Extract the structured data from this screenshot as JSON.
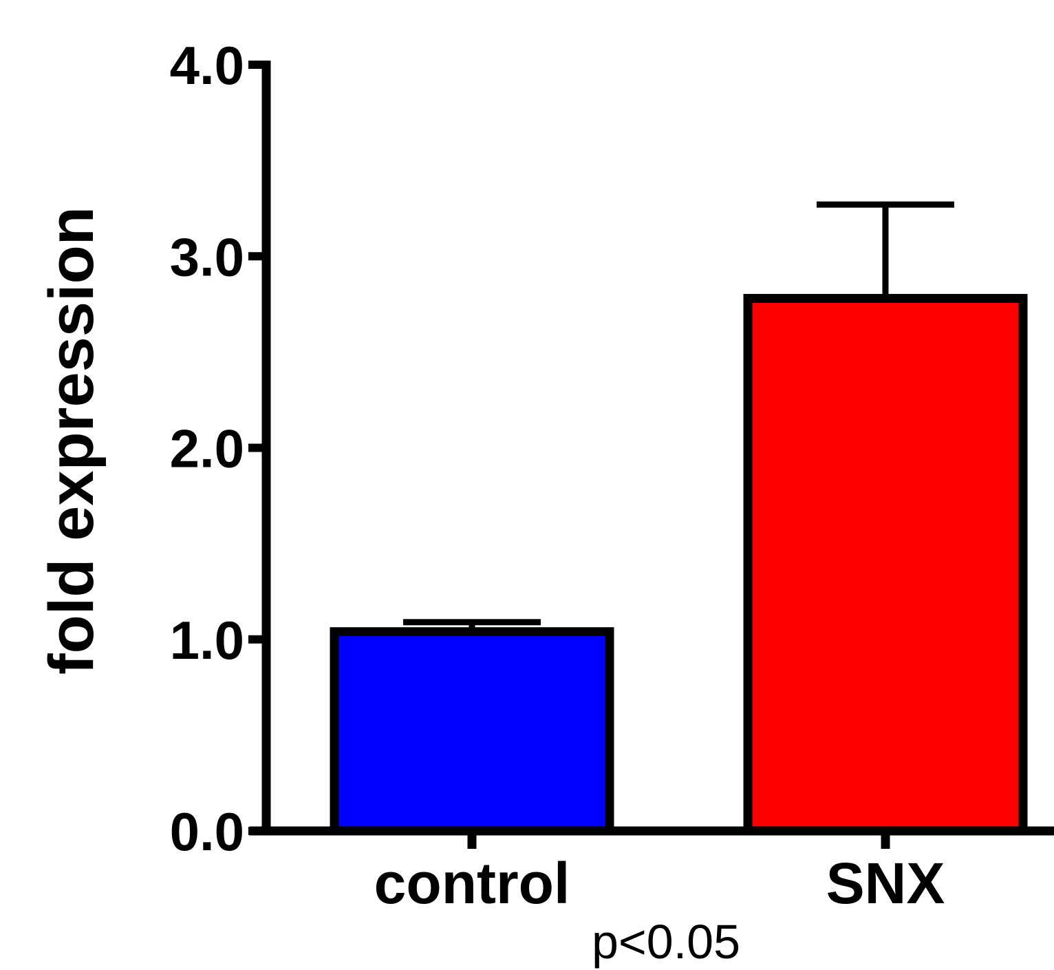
{
  "chart_data": {
    "type": "bar",
    "categories": [
      "control",
      "SNX"
    ],
    "values": [
      1.04,
      2.78
    ],
    "errors": [
      0.05,
      0.49
    ],
    "colors": [
      "#0000ff",
      "#ff0000"
    ],
    "edge_color": "#000000",
    "ylabel": "fold expression",
    "ylim": [
      0,
      4
    ],
    "yticks": [
      "0.0",
      "1.0",
      "2.0",
      "3.0",
      "4.0"
    ],
    "ytick_values": [
      0,
      1,
      2,
      3,
      4
    ],
    "grid": false,
    "annotation": "p<0.05"
  }
}
